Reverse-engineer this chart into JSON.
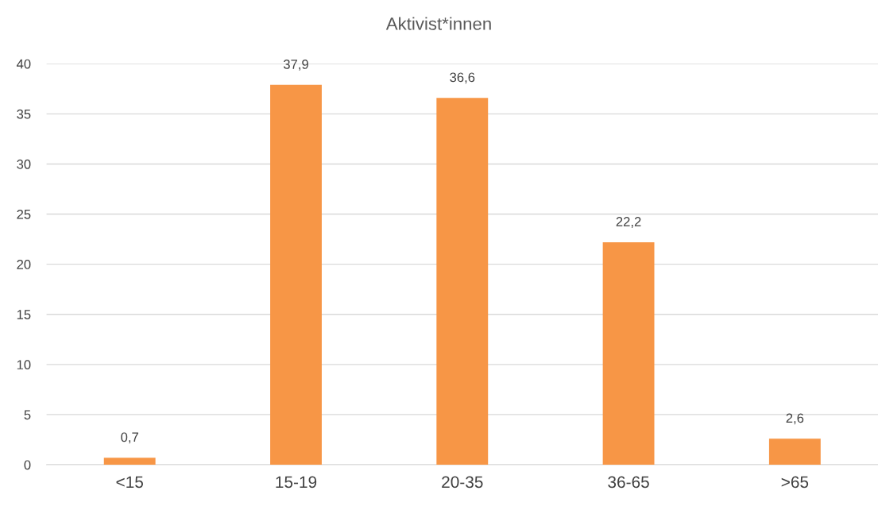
{
  "chart_data": {
    "type": "bar",
    "title": "Aktivist*innen",
    "categories": [
      "<15",
      "15-19",
      "20-35",
      "36-65",
      ">65"
    ],
    "values": [
      0.7,
      37.9,
      36.6,
      22.2,
      2.6
    ],
    "value_labels": [
      "0,7",
      "37,9",
      "36,6",
      "22,2",
      "2,6"
    ],
    "color": "#f79646",
    "ylim": [
      0,
      40
    ],
    "yticks": [
      0,
      5,
      10,
      15,
      20,
      25,
      30,
      35,
      40
    ],
    "grid": "y",
    "legend": false
  }
}
